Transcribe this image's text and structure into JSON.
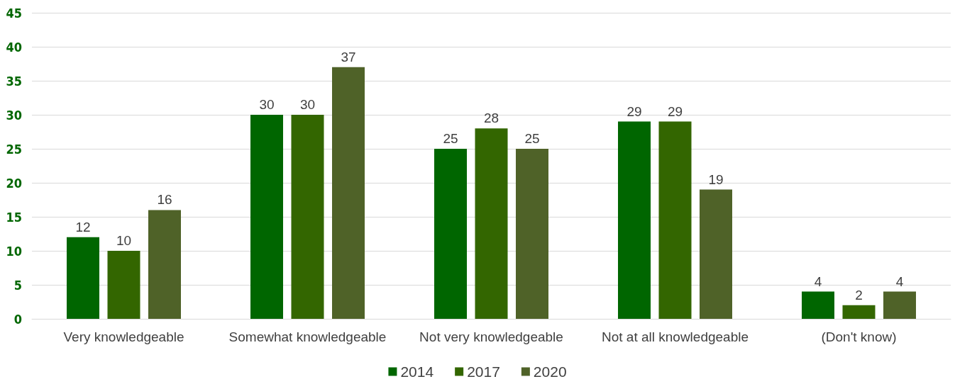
{
  "chart_data": {
    "type": "bar",
    "categories": [
      "Very knowledgeable",
      "Somewhat knowledgeable",
      "Not very knowledgeable",
      "Not at all knowledgeable",
      "(Don't know)"
    ],
    "series": [
      {
        "name": "2014",
        "color": "#006600",
        "values": [
          12,
          30,
          25,
          29,
          4
        ]
      },
      {
        "name": "2017",
        "color": "#336600",
        "values": [
          10,
          30,
          28,
          29,
          2
        ]
      },
      {
        "name": "2020",
        "color": "#4f6228",
        "values": [
          16,
          37,
          25,
          19,
          4
        ]
      }
    ],
    "ylim": [
      0,
      45
    ],
    "yticks": [
      0,
      5,
      10,
      15,
      20,
      25,
      30,
      35,
      40,
      45
    ],
    "grid": "y",
    "legend": "bottom",
    "data_labels": true
  }
}
